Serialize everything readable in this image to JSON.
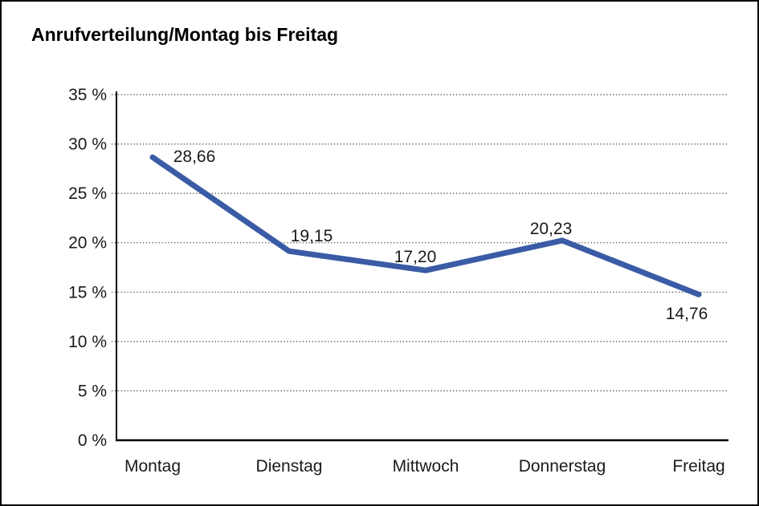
{
  "frame": {
    "background": "#ffffff",
    "border_color": "#000000"
  },
  "chart_data": {
    "type": "line",
    "title": "Anrufverteilung/Montag bis Freitag",
    "categories": [
      "Montag",
      "Dienstag",
      "Mittwoch",
      "Donnerstag",
      "Freitag"
    ],
    "series": [
      {
        "name": "Anrufverteilung",
        "values": [
          28.66,
          19.15,
          17.2,
          20.23,
          14.76
        ]
      }
    ],
    "data_labels": [
      "28,66",
      "19,15",
      "17,20",
      "20,23",
      "14,76"
    ],
    "xlabel": "",
    "ylabel": "",
    "ylim": [
      0,
      35
    ],
    "y_tick_values": [
      35,
      30,
      25,
      20,
      15,
      10,
      5,
      0
    ],
    "y_tick_labels": [
      "35 %",
      "30 %",
      "25 %",
      "20 %",
      "15 %",
      "10 %",
      "5 %",
      "0 %"
    ],
    "grid": "horizontal-dotted",
    "legend": "none",
    "colors": {
      "line": "#3A5BA5",
      "axis": "#000000",
      "grid": "#3C3C3C",
      "tick_text": "#1A1A1A",
      "data_label_text": "#1A1A1A"
    }
  }
}
